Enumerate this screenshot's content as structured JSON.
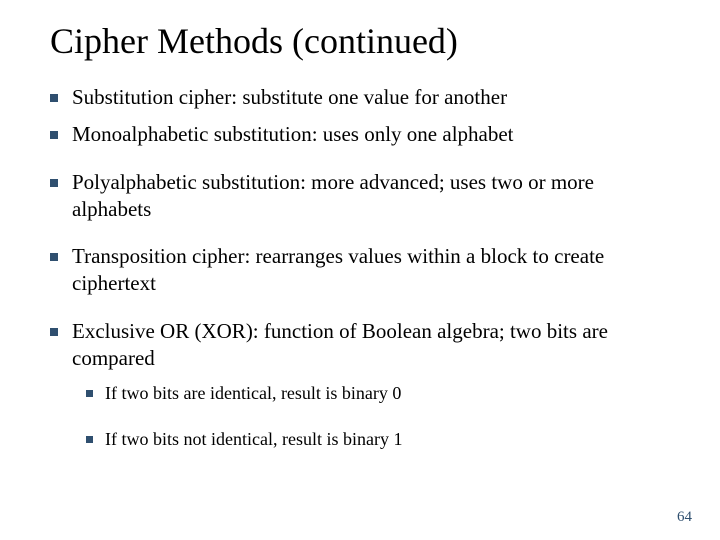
{
  "title": "Cipher Methods (continued)",
  "bullets": [
    {
      "text": "Substitution cipher: substitute one value for another"
    },
    {
      "text": "Monoalphabetic substitution: uses only one alphabet"
    },
    {
      "text": "Polyalphabetic substitution: more advanced; uses two or more alphabets"
    },
    {
      "text": "Transposition cipher: rearranges values within a block to create ciphertext"
    },
    {
      "text": "Exclusive OR (XOR): function of Boolean algebra; two bits are compared"
    }
  ],
  "sub_bullets": [
    {
      "text": "If two bits are identical, result is binary 0"
    },
    {
      "text": "If two bits not identical, result is binary 1"
    }
  ],
  "page_number": "64",
  "colors": {
    "accent": "#2f4f6f",
    "text": "#000000",
    "background": "#ffffff"
  },
  "typography": {
    "title_fontsize": 36,
    "bullet_fontsize": 21,
    "sub_bullet_fontsize": 18,
    "font_family": "Times New Roman"
  }
}
